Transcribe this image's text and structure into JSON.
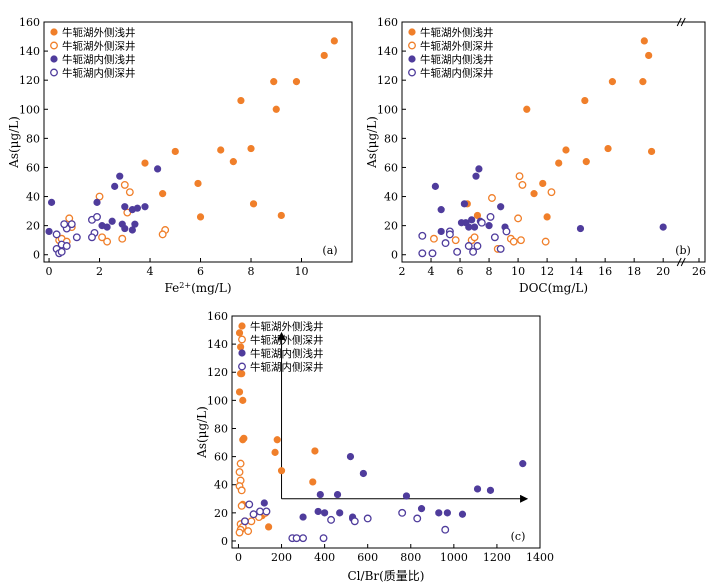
{
  "colors": {
    "orange": "#F07F2A",
    "purple": "#4F3C9C"
  },
  "legend": [
    {
      "label": "牛轭湖外侧浅井",
      "color": "#F07F2A",
      "filled": true
    },
    {
      "label": "牛轭湖外侧深井",
      "color": "#F07F2A",
      "filled": false
    },
    {
      "label": "牛轭湖内侧浅井",
      "color": "#4F3C9C",
      "filled": true
    },
    {
      "label": "牛轭湖内侧深井",
      "color": "#4F3C9C",
      "filled": false
    }
  ],
  "chart_data": [
    {
      "type": "scatter",
      "panel_label": "(a)",
      "xlabel": "Fe",
      "xlabel_sup": "2+",
      "xlabel_tail": "(mg/L)",
      "ylabel": "As(μg/L)",
      "xlim": [
        -0.2,
        12
      ],
      "ylim": [
        -5,
        160
      ],
      "xticks": [
        0,
        2,
        4,
        6,
        8,
        10
      ],
      "yticks": [
        0,
        20,
        40,
        60,
        80,
        100,
        120,
        140,
        160
      ],
      "series": [
        {
          "legend_index": 0,
          "points": [
            [
              11.3,
              147
            ],
            [
              10.9,
              137
            ],
            [
              9.8,
              119
            ],
            [
              8.9,
              119
            ],
            [
              9.0,
              100
            ],
            [
              7.6,
              106
            ],
            [
              6.8,
              72
            ],
            [
              5.0,
              71
            ],
            [
              7.3,
              64
            ],
            [
              3.8,
              63
            ],
            [
              5.9,
              49
            ],
            [
              4.5,
              42
            ],
            [
              8.0,
              73
            ],
            [
              8.1,
              35
            ],
            [
              6.0,
              26
            ],
            [
              9.2,
              27
            ]
          ]
        },
        {
          "legend_index": 1,
          "points": [
            [
              0.8,
              25
            ],
            [
              0.9,
              19
            ],
            [
              0.4,
              10
            ],
            [
              0.5,
              11
            ],
            [
              0.7,
              9
            ],
            [
              2.1,
              12
            ],
            [
              2.3,
              9
            ],
            [
              2.0,
              40
            ],
            [
              3.0,
              48
            ],
            [
              3.2,
              43
            ],
            [
              3.1,
              29
            ],
            [
              2.9,
              11
            ],
            [
              4.6,
              17
            ],
            [
              4.5,
              14
            ]
          ]
        },
        {
          "legend_index": 2,
          "points": [
            [
              0.1,
              36
            ],
            [
              0.0,
              16
            ],
            [
              1.9,
              36
            ],
            [
              2.1,
              20
            ],
            [
              2.3,
              19
            ],
            [
              2.6,
              47
            ],
            [
              2.8,
              54
            ],
            [
              3.0,
              33
            ],
            [
              3.3,
              31
            ],
            [
              3.4,
              21
            ],
            [
              3.3,
              17
            ],
            [
              3.5,
              32
            ],
            [
              3.8,
              33
            ],
            [
              4.3,
              59
            ],
            [
              2.5,
              23
            ],
            [
              2.9,
              21
            ],
            [
              3.0,
              18
            ]
          ]
        },
        {
          "legend_index": 3,
          "points": [
            [
              0.3,
              14
            ],
            [
              0.5,
              7
            ],
            [
              0.3,
              4
            ],
            [
              0.4,
              1
            ],
            [
              0.5,
              2
            ],
            [
              0.7,
              6
            ],
            [
              0.7,
              18
            ],
            [
              0.9,
              21
            ],
            [
              1.1,
              12
            ],
            [
              1.8,
              15
            ],
            [
              1.7,
              24
            ],
            [
              1.9,
              26
            ],
            [
              1.7,
              12
            ],
            [
              0.6,
              21
            ]
          ]
        }
      ]
    },
    {
      "type": "scatter",
      "panel_label": "(b)",
      "xlabel": "DOC(mg/L)",
      "ylabel": "As(μg/L)",
      "xlim": [
        2,
        26
      ],
      "ylim": [
        -5,
        160
      ],
      "xticks": [
        2,
        4,
        6,
        8,
        10,
        12,
        14,
        16,
        18,
        20,
        26
      ],
      "yticks": [
        0,
        20,
        40,
        60,
        80,
        100,
        120,
        140,
        160
      ],
      "series": [
        {
          "legend_index": 0,
          "points": [
            [
              18.7,
              147
            ],
            [
              19.0,
              137
            ],
            [
              16.5,
              119
            ],
            [
              18.6,
              119
            ],
            [
              10.6,
              100
            ],
            [
              14.6,
              106
            ],
            [
              13.3,
              72
            ],
            [
              19.2,
              71
            ],
            [
              14.7,
              64
            ],
            [
              12.8,
              63
            ],
            [
              11.7,
              49
            ],
            [
              16.2,
              73
            ],
            [
              11.1,
              42
            ],
            [
              7.2,
              27
            ],
            [
              6.5,
              35
            ],
            [
              12.0,
              26
            ]
          ]
        },
        {
          "legend_index": 1,
          "points": [
            [
              10.1,
              54
            ],
            [
              10.3,
              48
            ],
            [
              8.2,
              39
            ],
            [
              12.3,
              43
            ],
            [
              10.0,
              25
            ],
            [
              9.5,
              11
            ],
            [
              9.7,
              9
            ],
            [
              10.2,
              10
            ],
            [
              11.9,
              9
            ],
            [
              6.8,
              10
            ],
            [
              7.0,
              12
            ],
            [
              5.7,
              10
            ],
            [
              4.2,
              11
            ],
            [
              8.6,
              4
            ]
          ]
        },
        {
          "legend_index": 2,
          "points": [
            [
              4.3,
              47
            ],
            [
              6.3,
              35
            ],
            [
              7.3,
              59
            ],
            [
              7.1,
              54
            ],
            [
              4.7,
              31
            ],
            [
              6.8,
              24
            ],
            [
              6.4,
              22
            ],
            [
              6.1,
              22
            ],
            [
              6.6,
              19
            ],
            [
              7.0,
              19
            ],
            [
              7.4,
              23
            ],
            [
              8.0,
              20
            ],
            [
              8.8,
              33
            ],
            [
              9.1,
              19
            ],
            [
              14.3,
              18
            ],
            [
              20.0,
              19
            ],
            [
              4.7,
              16
            ]
          ]
        },
        {
          "legend_index": 3,
          "points": [
            [
              3.4,
              1
            ],
            [
              3.4,
              13
            ],
            [
              4.1,
              1
            ],
            [
              5.3,
              16
            ],
            [
              5.3,
              14
            ],
            [
              5.0,
              8
            ],
            [
              6.6,
              6
            ],
            [
              7.2,
              6
            ],
            [
              6.9,
              2
            ],
            [
              7.5,
              22
            ],
            [
              8.1,
              26
            ],
            [
              8.4,
              12
            ],
            [
              8.8,
              4
            ],
            [
              9.2,
              16
            ],
            [
              5.8,
              2
            ]
          ]
        }
      ]
    },
    {
      "type": "scatter",
      "panel_label": "(c)",
      "xlabel": "Cl/Br(质量比)",
      "ylabel": "As(μg/L)",
      "xlim": [
        -30,
        1400
      ],
      "ylim": [
        -5,
        160
      ],
      "xticks": [
        0,
        200,
        400,
        600,
        800,
        1000,
        1200,
        1400
      ],
      "yticks": [
        0,
        20,
        40,
        60,
        80,
        100,
        120,
        140,
        160
      ],
      "series": [
        {
          "legend_index": 0,
          "points": [
            [
              5,
              148
            ],
            [
              10,
              138
            ],
            [
              10,
              119
            ],
            [
              15,
              119
            ],
            [
              5,
              106
            ],
            [
              20,
              100
            ],
            [
              20,
              72
            ],
            [
              25,
              73
            ],
            [
              180,
              72
            ],
            [
              170,
              63
            ],
            [
              200,
              50
            ],
            [
              355,
              64
            ],
            [
              345,
              42
            ],
            [
              20,
              26
            ],
            [
              110,
              18
            ],
            [
              140,
              10
            ]
          ]
        },
        {
          "legend_index": 1,
          "points": [
            [
              10,
              55
            ],
            [
              5,
              49
            ],
            [
              10,
              43
            ],
            [
              5,
              39
            ],
            [
              15,
              36
            ],
            [
              15,
              25
            ],
            [
              10,
              12
            ],
            [
              20,
              10
            ],
            [
              30,
              14
            ],
            [
              10,
              8
            ],
            [
              5,
              6
            ],
            [
              45,
              7
            ],
            [
              60,
              14
            ],
            [
              95,
              17
            ],
            [
              125,
              20
            ]
          ]
        },
        {
          "legend_index": 2,
          "points": [
            [
              520,
              60
            ],
            [
              580,
              48
            ],
            [
              1320,
              55
            ],
            [
              1110,
              37
            ],
            [
              1170,
              36
            ],
            [
              380,
              33
            ],
            [
              460,
              33
            ],
            [
              780,
              32
            ],
            [
              370,
              21
            ],
            [
              400,
              20
            ],
            [
              470,
              20
            ],
            [
              530,
              17
            ],
            [
              530,
              16
            ],
            [
              850,
              23
            ],
            [
              970,
              20
            ],
            [
              1040,
              19
            ],
            [
              930,
              20
            ],
            [
              120,
              27
            ],
            [
              300,
              17
            ]
          ]
        },
        {
          "legend_index": 3,
          "points": [
            [
              50,
              26
            ],
            [
              70,
              19
            ],
            [
              100,
              21
            ],
            [
              130,
              21
            ],
            [
              250,
              2
            ],
            [
              270,
              2
            ],
            [
              300,
              2
            ],
            [
              395,
              2
            ],
            [
              430,
              15
            ],
            [
              540,
              14
            ],
            [
              600,
              16
            ],
            [
              760,
              20
            ],
            [
              830,
              16
            ],
            [
              960,
              8
            ],
            [
              30,
              14
            ]
          ]
        }
      ]
    }
  ]
}
